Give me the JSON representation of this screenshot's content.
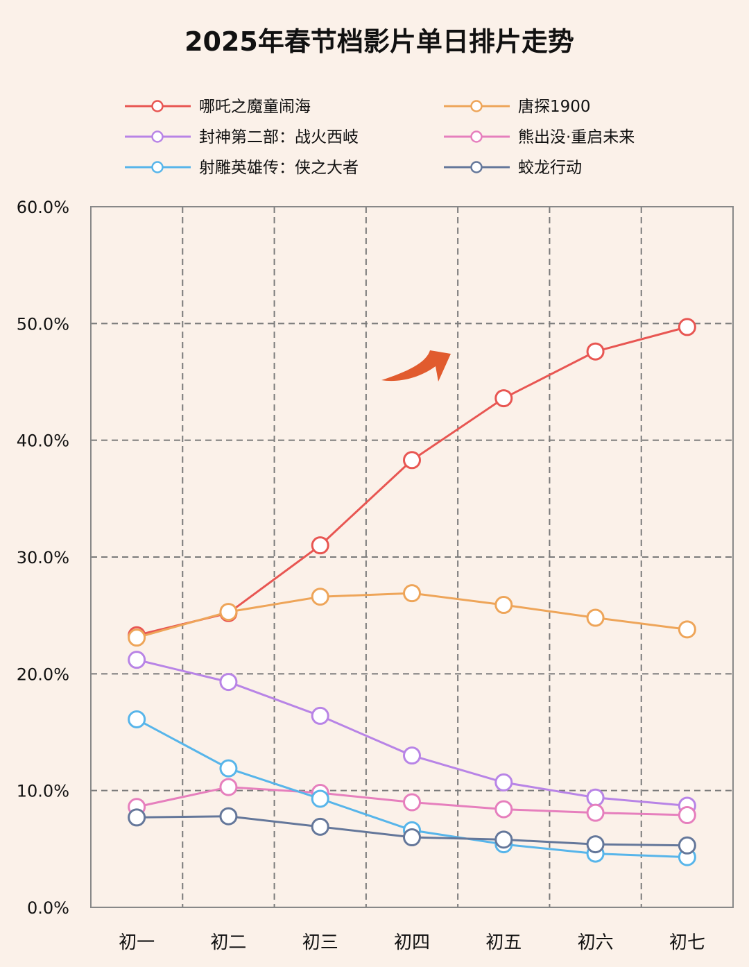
{
  "chart_data": {
    "type": "line",
    "title": "2025年春节档影片单日排片走势",
    "xlabel": "",
    "ylabel": "",
    "categories": [
      "初一",
      "初二",
      "初三",
      "初四",
      "初五",
      "初六",
      "初七"
    ],
    "yticks": [
      "0.0%",
      "10.0%",
      "20.0%",
      "30.0%",
      "40.0%",
      "50.0%",
      "60.0%"
    ],
    "ylim": [
      0,
      60
    ],
    "grid": true,
    "legend_position": "top",
    "series": [
      {
        "name": "哪吒之魔童闹海",
        "color": "#e85652",
        "values": [
          23.3,
          25.2,
          31.0,
          38.3,
          43.6,
          47.6,
          49.7
        ]
      },
      {
        "name": "唐探1900",
        "color": "#eea559",
        "values": [
          23.1,
          25.3,
          26.6,
          26.9,
          25.9,
          24.8,
          23.8
        ]
      },
      {
        "name": "封神第二部：战火西岐",
        "color": "#b884e6",
        "values": [
          21.2,
          19.3,
          16.4,
          13.0,
          10.7,
          9.4,
          8.7
        ]
      },
      {
        "name": "熊出没·重启未来",
        "color": "#e67fbd",
        "values": [
          8.6,
          10.3,
          9.8,
          9.0,
          8.4,
          8.1,
          7.9
        ]
      },
      {
        "name": "射雕英雄传：侠之大者",
        "color": "#57b5ea",
        "values": [
          16.1,
          11.9,
          9.3,
          6.6,
          5.4,
          4.6,
          4.3
        ]
      },
      {
        "name": "蛟龙行动",
        "color": "#64779a",
        "values": [
          7.7,
          7.8,
          6.9,
          6.0,
          5.8,
          5.4,
          5.3
        ]
      }
    ]
  }
}
